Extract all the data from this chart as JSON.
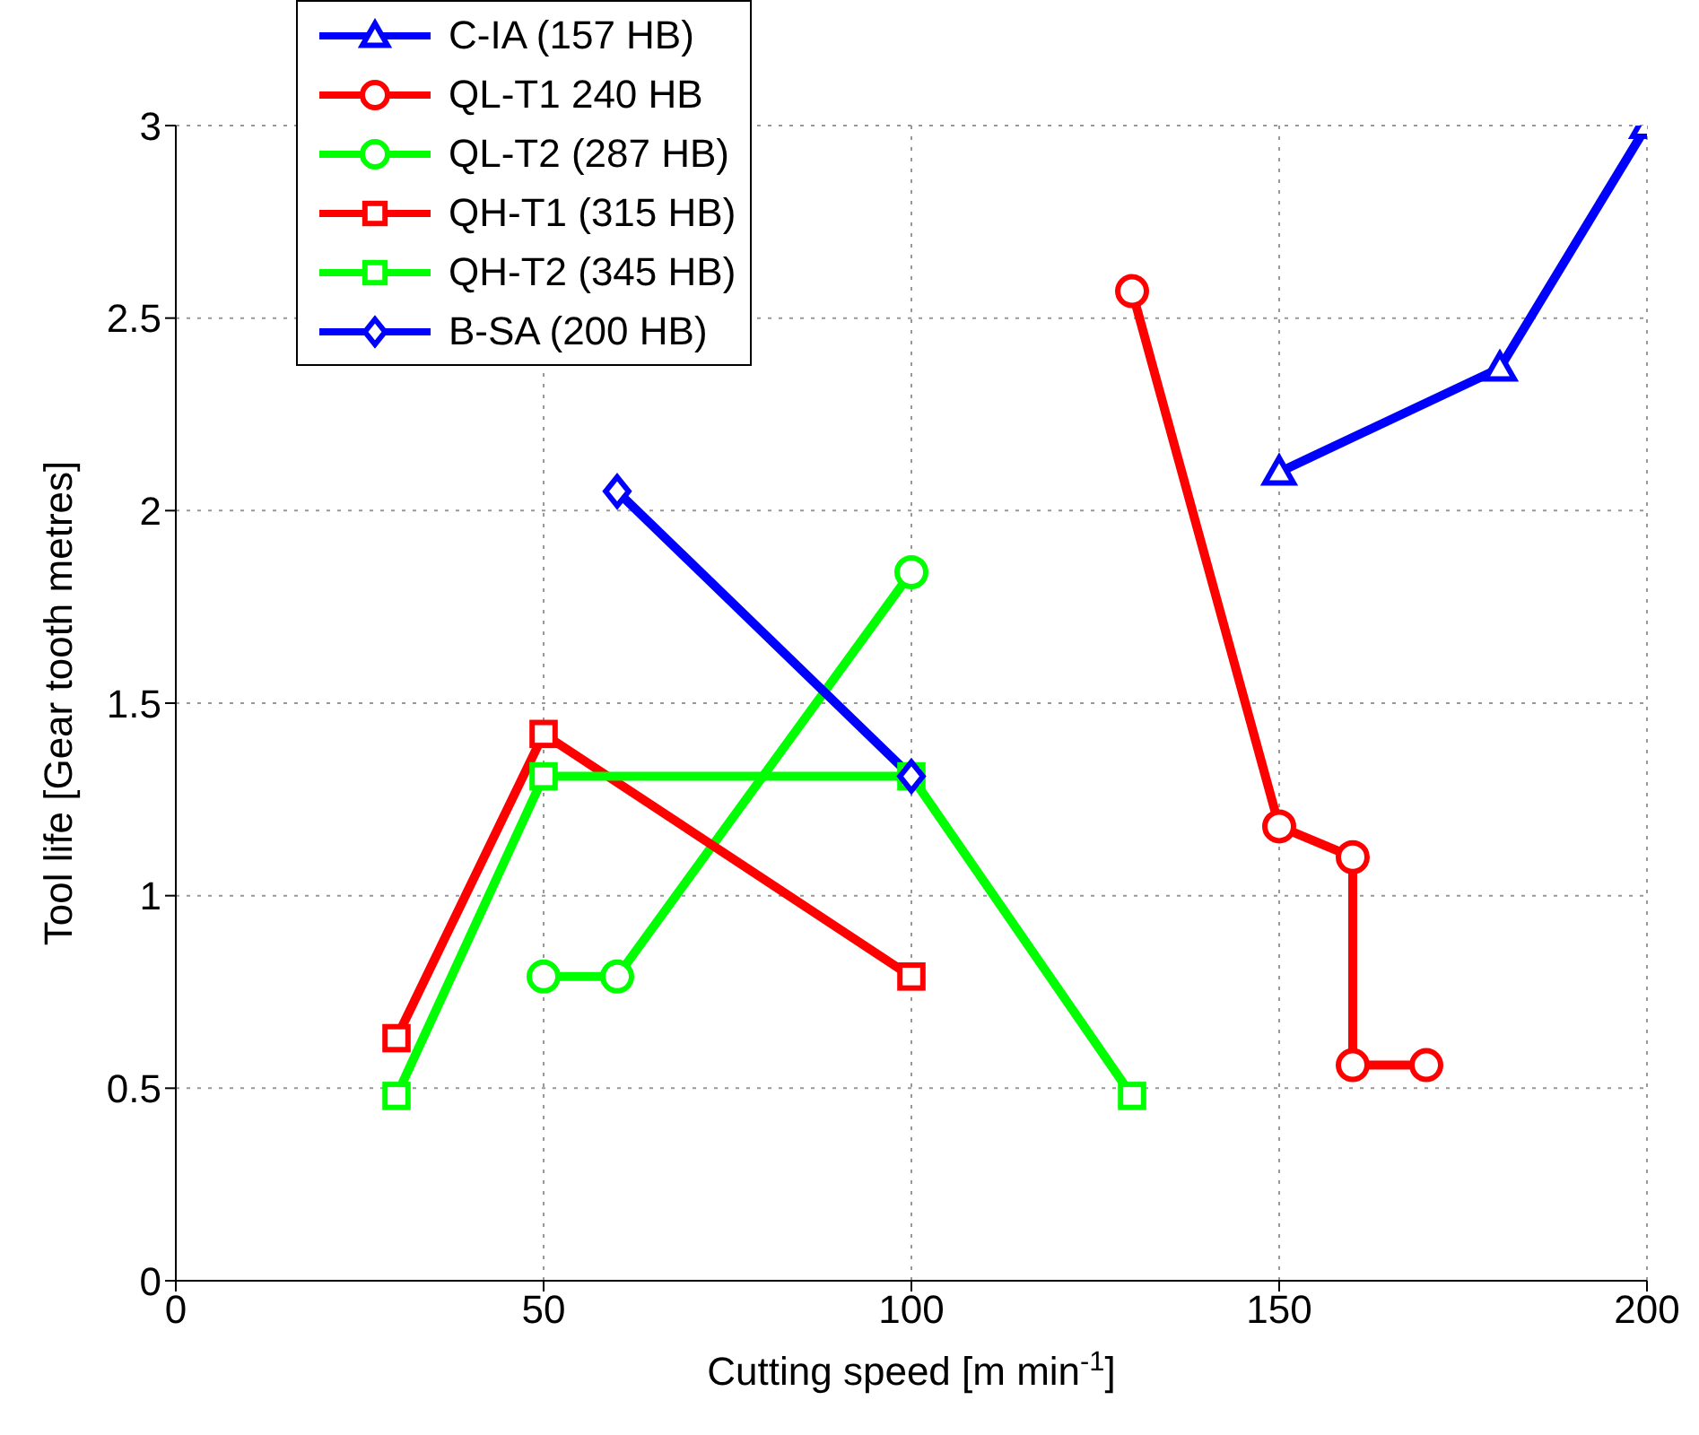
{
  "chart_data": {
    "type": "line",
    "xlabel": "Cutting speed [m min$^{-1}$]",
    "ylabel": "Tool life [Gear tooth metres]",
    "xlim": [
      0,
      200
    ],
    "xticks": [
      0,
      50,
      100,
      150,
      200
    ],
    "ylim": [
      0,
      3
    ],
    "yticks": [
      0,
      0.5,
      1,
      1.5,
      2,
      2.5,
      3
    ],
    "grid": true,
    "legend": "top left",
    "line_style": "solid",
    "series": [
      {
        "name": "C-IA (157 HB)",
        "color": "#0000ff",
        "marker": "triangle",
        "x": [
          150,
          180,
          200
        ],
        "values": [
          2.1,
          2.37,
          3.0
        ]
      },
      {
        "name": "QL-T1 240 HB",
        "color": "#ff0000",
        "marker": "circle",
        "x": [
          130,
          150,
          160,
          160,
          170
        ],
        "values": [
          2.57,
          1.18,
          1.1,
          0.56,
          0.56
        ]
      },
      {
        "name": "QL-T2 (287 HB)",
        "color": "#00ff00",
        "marker": "circle",
        "x": [
          50,
          60,
          100
        ],
        "values": [
          0.79,
          0.79,
          1.84
        ]
      },
      {
        "name": "QH-T1 (315 HB)",
        "color": "#ff0000",
        "marker": "square",
        "x": [
          30,
          50,
          100
        ],
        "values": [
          0.63,
          1.42,
          0.79
        ]
      },
      {
        "name": "QH-T2 (345 HB)",
        "color": "#00ff00",
        "marker": "square",
        "x": [
          30,
          50,
          100,
          130
        ],
        "values": [
          0.48,
          1.31,
          1.31,
          0.48
        ]
      },
      {
        "name": "B-SA (200 HB)",
        "color": "#0000ff",
        "marker": "diamond",
        "x": [
          60,
          100
        ],
        "values": [
          2.05,
          1.31
        ]
      }
    ]
  }
}
